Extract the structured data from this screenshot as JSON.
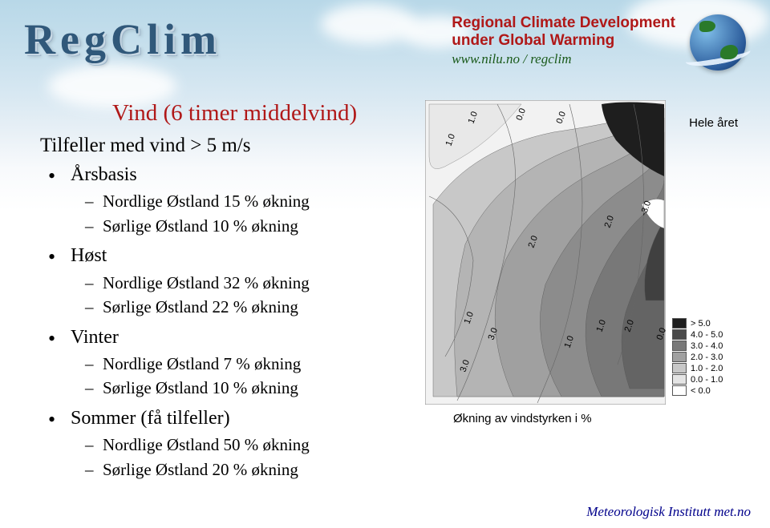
{
  "header": {
    "logo_text": "RegClim",
    "title_line1": "Regional Climate Development",
    "title_line2": "under Global Warming",
    "url": "www.nilu.no / regclim"
  },
  "content": {
    "heading": "Vind (6 timer middelvind)",
    "subheading": "Tilfeller med vind > 5 m/s",
    "groups": [
      {
        "label": "Årsbasis",
        "items": [
          "Nordlige Østland 15 % økning",
          "Sørlige Østland 10 % økning"
        ]
      },
      {
        "label": "Høst",
        "items": [
          "Nordlige Østland 32 % økning",
          "Sørlige Østland 22 % økning"
        ]
      },
      {
        "label": "Vinter",
        "items": [
          "Nordlige Østland  7 % økning",
          "Sørlige Østland 10 % økning"
        ]
      },
      {
        "label": "Sommer (få tilfeller)",
        "items": [
          "Nordlige Østland  50 % økning",
          "Sørlige Østland 20 % økning"
        ]
      }
    ]
  },
  "map": {
    "top_label": "Hele året",
    "caption": "Økning av vindstyrken i %",
    "contour_labels": [
      "1.0",
      "1.0",
      "0.0",
      "0.0",
      "1.0",
      "2.0",
      "2.0",
      "3.0",
      "3.0",
      "1.0",
      "1.0",
      "2.0",
      "0.0",
      "-3.0"
    ],
    "contour_positions": [
      [
        60,
        30
      ],
      [
        32,
        58
      ],
      [
        120,
        26
      ],
      [
        170,
        30
      ],
      [
        55,
        280
      ],
      [
        230,
        160
      ],
      [
        135,
        185
      ],
      [
        85,
        300
      ],
      [
        50,
        340
      ],
      [
        180,
        310
      ],
      [
        220,
        290
      ],
      [
        255,
        290
      ],
      [
        295,
        300
      ],
      [
        275,
        145
      ]
    ],
    "band_colors": [
      "#d8d8d8",
      "#c8c8c8",
      "#b4b4b4",
      "#a0a0a0",
      "#8c8c8c",
      "#787878",
      "#646464",
      "#404040",
      "#1e1e1e"
    ],
    "legend": [
      {
        "fill": "#1e1e1e",
        "label": "> 5.0"
      },
      {
        "fill": "#4a4a4a",
        "label": "4.0 - 5.0"
      },
      {
        "fill": "#787878",
        "label": "3.0 - 4.0"
      },
      {
        "fill": "#a0a0a0",
        "label": "2.0 - 3.0"
      },
      {
        "fill": "#c8c8c8",
        "label": "1.0 - 2.0"
      },
      {
        "fill": "#e4e4e4",
        "label": "0.0 - 1.0"
      },
      {
        "fill": "#ffffff",
        "label": "< 0.0"
      }
    ]
  },
  "footer": {
    "text": "Meteorologisk Institutt met.no"
  }
}
